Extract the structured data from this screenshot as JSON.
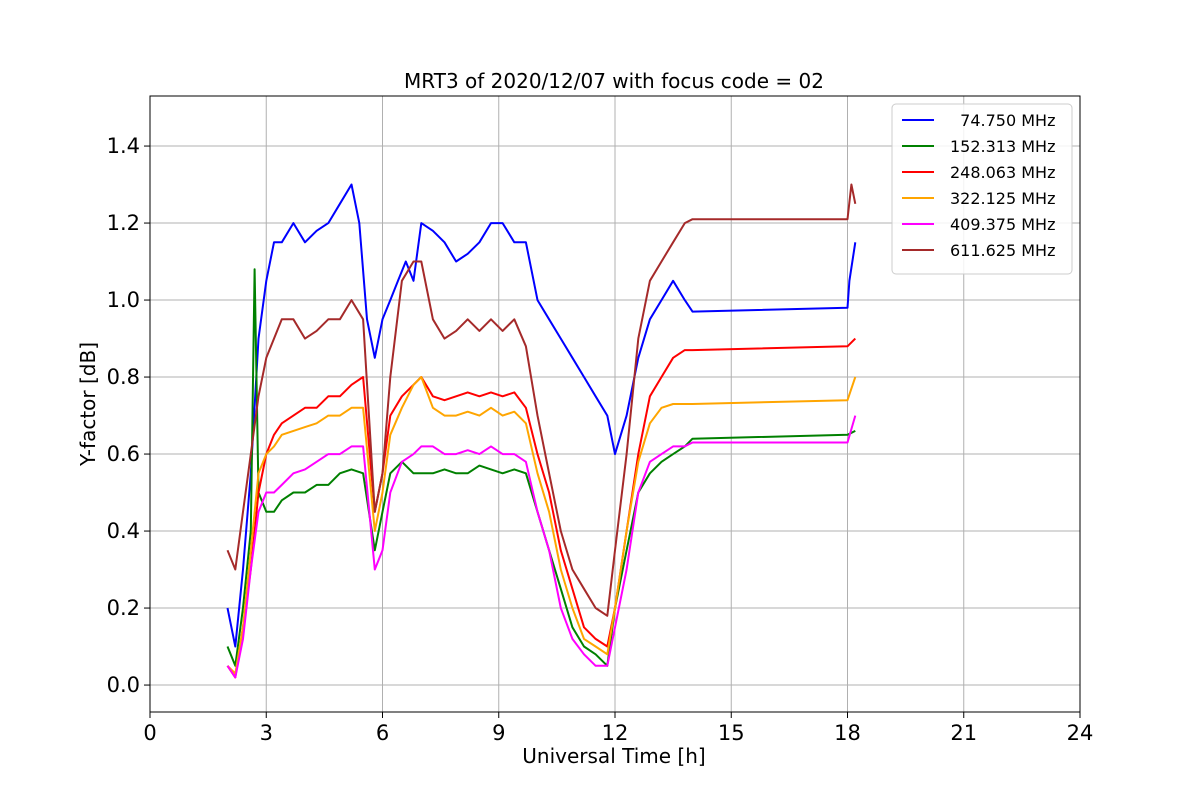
{
  "chart_data": {
    "type": "line",
    "title": "MRT3 of 2020/12/07 with focus code = 02",
    "xlabel": "Universal Time [h]",
    "ylabel": "Y-factor [dB]",
    "xlim": [
      0,
      24
    ],
    "ylim": [
      -0.07,
      1.53
    ],
    "xticks": [
      0,
      3,
      6,
      9,
      12,
      15,
      18,
      21,
      24
    ],
    "yticks": [
      0.0,
      0.2,
      0.4,
      0.6,
      0.8,
      1.0,
      1.2,
      1.4
    ],
    "xtick_labels": [
      "0",
      "3",
      "6",
      "9",
      "12",
      "15",
      "18",
      "21",
      "24"
    ],
    "ytick_labels": [
      "0.0",
      "0.2",
      "0.4",
      "0.6",
      "0.8",
      "1.0",
      "1.2",
      "1.4"
    ],
    "grid": true,
    "legend_position": "top-right",
    "series": [
      {
        "name": "  74.750 MHz",
        "color": "#0000ff",
        "x": [
          2.0,
          2.2,
          2.4,
          2.6,
          2.8,
          3.0,
          3.2,
          3.4,
          3.7,
          4.0,
          4.3,
          4.6,
          4.9,
          5.2,
          5.4,
          5.6,
          5.8,
          6.0,
          6.2,
          6.4,
          6.6,
          6.8,
          7.0,
          7.3,
          7.6,
          7.9,
          8.2,
          8.5,
          8.8,
          9.1,
          9.4,
          9.7,
          10.0,
          10.3,
          10.6,
          10.9,
          11.2,
          11.5,
          11.8,
          12.0,
          12.3,
          12.6,
          12.9,
          13.2,
          13.5,
          13.8,
          14.0,
          18.0,
          18.05,
          18.2
        ],
        "y": [
          0.2,
          0.1,
          0.3,
          0.55,
          0.9,
          1.05,
          1.15,
          1.15,
          1.2,
          1.15,
          1.18,
          1.2,
          1.25,
          1.3,
          1.2,
          0.95,
          0.85,
          0.95,
          1.0,
          1.05,
          1.1,
          1.05,
          1.2,
          1.18,
          1.15,
          1.1,
          1.12,
          1.15,
          1.2,
          1.2,
          1.15,
          1.15,
          1.0,
          0.95,
          0.9,
          0.85,
          0.8,
          0.75,
          0.7,
          0.6,
          0.7,
          0.85,
          0.95,
          1.0,
          1.05,
          1.0,
          0.97,
          0.98,
          1.05,
          1.15
        ]
      },
      {
        "name": "152.313 MHz",
        "color": "#008000",
        "x": [
          2.0,
          2.2,
          2.4,
          2.6,
          2.7,
          2.8,
          3.0,
          3.2,
          3.4,
          3.7,
          4.0,
          4.3,
          4.6,
          4.9,
          5.2,
          5.5,
          5.8,
          6.0,
          6.2,
          6.5,
          6.8,
          7.0,
          7.3,
          7.6,
          7.9,
          8.2,
          8.5,
          8.8,
          9.1,
          9.4,
          9.7,
          10.0,
          10.3,
          10.6,
          10.9,
          11.2,
          11.5,
          11.8,
          12.0,
          12.3,
          12.6,
          12.9,
          13.2,
          13.5,
          13.8,
          14.0,
          18.0,
          18.2
        ],
        "y": [
          0.1,
          0.05,
          0.2,
          0.4,
          1.08,
          0.5,
          0.45,
          0.45,
          0.48,
          0.5,
          0.5,
          0.52,
          0.52,
          0.55,
          0.56,
          0.55,
          0.35,
          0.45,
          0.55,
          0.58,
          0.55,
          0.55,
          0.55,
          0.56,
          0.55,
          0.55,
          0.57,
          0.56,
          0.55,
          0.56,
          0.55,
          0.45,
          0.35,
          0.25,
          0.15,
          0.1,
          0.08,
          0.05,
          0.2,
          0.35,
          0.5,
          0.55,
          0.58,
          0.6,
          0.62,
          0.64,
          0.65,
          0.66
        ]
      },
      {
        "name": "248.063 MHz",
        "color": "#ff0000",
        "x": [
          2.0,
          2.2,
          2.4,
          2.6,
          2.8,
          3.0,
          3.2,
          3.4,
          3.7,
          4.0,
          4.3,
          4.6,
          4.9,
          5.2,
          5.5,
          5.8,
          6.0,
          6.2,
          6.5,
          6.8,
          7.0,
          7.3,
          7.6,
          7.9,
          8.2,
          8.5,
          8.8,
          9.1,
          9.4,
          9.7,
          10.0,
          10.3,
          10.6,
          10.9,
          11.2,
          11.5,
          11.8,
          12.0,
          12.3,
          12.6,
          12.9,
          13.2,
          13.5,
          13.8,
          14.0,
          18.0,
          18.2
        ],
        "y": [
          0.05,
          0.02,
          0.15,
          0.3,
          0.5,
          0.6,
          0.65,
          0.68,
          0.7,
          0.72,
          0.72,
          0.75,
          0.75,
          0.78,
          0.8,
          0.45,
          0.55,
          0.7,
          0.75,
          0.78,
          0.8,
          0.75,
          0.74,
          0.75,
          0.76,
          0.75,
          0.76,
          0.75,
          0.76,
          0.72,
          0.6,
          0.5,
          0.35,
          0.25,
          0.15,
          0.12,
          0.1,
          0.2,
          0.4,
          0.6,
          0.75,
          0.8,
          0.85,
          0.87,
          0.87,
          0.88,
          0.9
        ]
      },
      {
        "name": "322.125 MHz",
        "color": "#ffa500",
        "x": [
          2.0,
          2.2,
          2.4,
          2.6,
          2.8,
          3.0,
          3.2,
          3.4,
          3.7,
          4.0,
          4.3,
          4.6,
          4.9,
          5.2,
          5.5,
          5.8,
          6.0,
          6.2,
          6.5,
          6.8,
          7.0,
          7.3,
          7.6,
          7.9,
          8.2,
          8.5,
          8.8,
          9.1,
          9.4,
          9.7,
          10.0,
          10.3,
          10.6,
          10.9,
          11.2,
          11.5,
          11.8,
          12.0,
          12.3,
          12.6,
          12.9,
          13.2,
          13.5,
          13.8,
          14.0,
          18.0,
          18.2
        ],
        "y": [
          0.05,
          0.03,
          0.15,
          0.35,
          0.55,
          0.6,
          0.62,
          0.65,
          0.66,
          0.67,
          0.68,
          0.7,
          0.7,
          0.72,
          0.72,
          0.4,
          0.5,
          0.65,
          0.72,
          0.78,
          0.8,
          0.72,
          0.7,
          0.7,
          0.71,
          0.7,
          0.72,
          0.7,
          0.71,
          0.68,
          0.55,
          0.45,
          0.3,
          0.2,
          0.12,
          0.1,
          0.08,
          0.2,
          0.4,
          0.58,
          0.68,
          0.72,
          0.73,
          0.73,
          0.73,
          0.74,
          0.8
        ]
      },
      {
        "name": "409.375 MHz",
        "color": "#ff00ff",
        "x": [
          2.0,
          2.2,
          2.4,
          2.6,
          2.8,
          3.0,
          3.2,
          3.4,
          3.7,
          4.0,
          4.3,
          4.6,
          4.9,
          5.2,
          5.5,
          5.8,
          6.0,
          6.2,
          6.5,
          6.8,
          7.0,
          7.3,
          7.6,
          7.9,
          8.2,
          8.5,
          8.8,
          9.1,
          9.4,
          9.7,
          10.0,
          10.3,
          10.6,
          10.9,
          11.2,
          11.5,
          11.8,
          12.0,
          12.3,
          12.6,
          12.9,
          13.2,
          13.5,
          13.8,
          14.0,
          18.0,
          18.2
        ],
        "y": [
          0.05,
          0.02,
          0.12,
          0.3,
          0.45,
          0.5,
          0.5,
          0.52,
          0.55,
          0.56,
          0.58,
          0.6,
          0.6,
          0.62,
          0.62,
          0.3,
          0.35,
          0.5,
          0.58,
          0.6,
          0.62,
          0.62,
          0.6,
          0.6,
          0.61,
          0.6,
          0.62,
          0.6,
          0.6,
          0.58,
          0.45,
          0.35,
          0.2,
          0.12,
          0.08,
          0.05,
          0.05,
          0.15,
          0.3,
          0.5,
          0.58,
          0.6,
          0.62,
          0.62,
          0.63,
          0.63,
          0.7
        ]
      },
      {
        "name": "611.625 MHz",
        "color": "#a52a2a",
        "x": [
          2.0,
          2.2,
          2.4,
          2.6,
          2.8,
          3.0,
          3.2,
          3.4,
          3.7,
          4.0,
          4.3,
          4.6,
          4.9,
          5.2,
          5.5,
          5.8,
          6.0,
          6.2,
          6.5,
          6.8,
          7.0,
          7.3,
          7.6,
          7.9,
          8.2,
          8.5,
          8.8,
          9.1,
          9.4,
          9.7,
          10.0,
          10.3,
          10.6,
          10.9,
          11.2,
          11.5,
          11.8,
          12.0,
          12.3,
          12.6,
          12.9,
          13.2,
          13.5,
          13.8,
          14.0,
          18.0,
          18.1,
          18.2
        ],
        "y": [
          0.35,
          0.3,
          0.45,
          0.6,
          0.75,
          0.85,
          0.9,
          0.95,
          0.95,
          0.9,
          0.92,
          0.95,
          0.95,
          1.0,
          0.95,
          0.45,
          0.55,
          0.8,
          1.05,
          1.1,
          1.1,
          0.95,
          0.9,
          0.92,
          0.95,
          0.92,
          0.95,
          0.92,
          0.95,
          0.88,
          0.7,
          0.55,
          0.4,
          0.3,
          0.25,
          0.2,
          0.18,
          0.35,
          0.6,
          0.9,
          1.05,
          1.1,
          1.15,
          1.2,
          1.21,
          1.21,
          1.3,
          1.25
        ]
      }
    ]
  }
}
